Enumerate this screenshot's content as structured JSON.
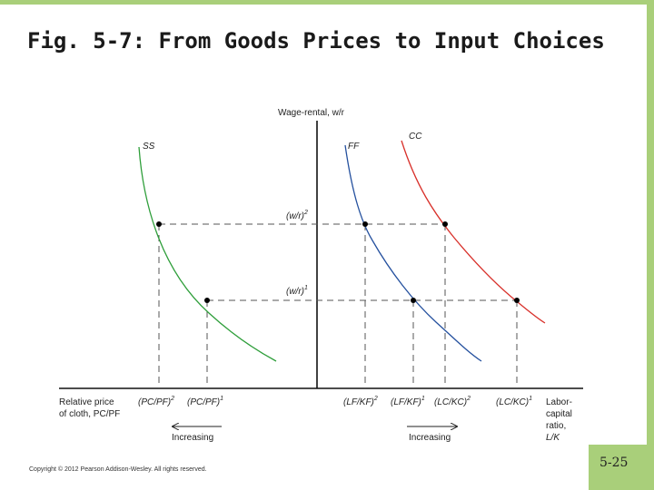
{
  "slide": {
    "title": "Fig. 5-7:  From Goods Prices to Input Choices",
    "copyright": "Copyright © 2012 Pearson Addison-Wesley. All rights reserved.",
    "page_number": "5-25",
    "accent_color": "#a9cf7a"
  },
  "diagram": {
    "vertical_axis_label": "Wage-rental, w/r",
    "curves": [
      {
        "label": "SS",
        "color": "#2e9e3a"
      },
      {
        "label": "FF",
        "color": "#24509e"
      },
      {
        "label": "CC",
        "color": "#d8302a"
      }
    ],
    "wage_levels": [
      "(w/r)",
      "2",
      "(w/r)",
      "1"
    ],
    "left_axis_label_line1": "Relative price",
    "left_axis_label_line2": "of cloth, PC/PF",
    "price_ticks": [
      "(PC/PF)",
      "2",
      "(PC/PF)",
      "1"
    ],
    "ratio_ticks": [
      "(LF/KF)",
      "2",
      "(LF/KF)",
      "1",
      "(LC/KC)",
      "2",
      "(LC/KC)",
      "1"
    ],
    "right_axis_label": [
      "Labor-",
      "capital",
      "ratio,",
      "L/K"
    ],
    "left_arrow_label": "Increasing",
    "right_arrow_label": "Increasing"
  }
}
